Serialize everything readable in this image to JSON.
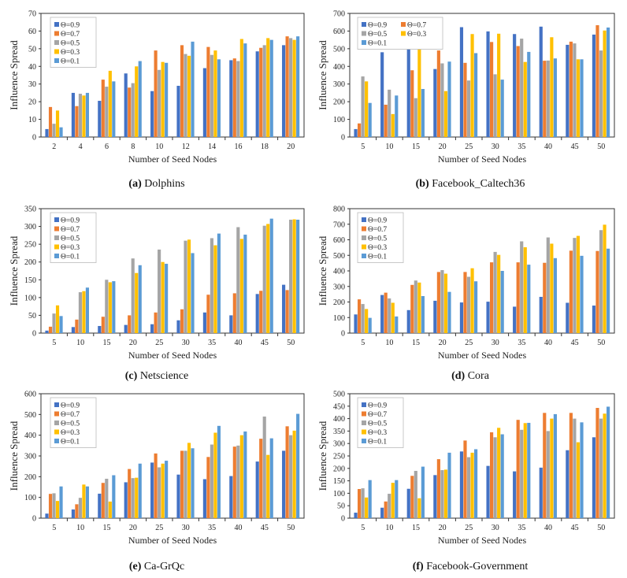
{
  "chart_data": [
    {
      "type": "bar",
      "id": "a",
      "caption_letter": "(a)",
      "caption_name": "Dolphins",
      "xlabel": "Number of Seed Nodes",
      "ylabel": "Influence Spread",
      "ylim": [
        0,
        70
      ],
      "yticks": [
        0,
        10,
        20,
        30,
        40,
        50,
        60,
        70
      ],
      "legend_columns": 1,
      "categories": [
        "2",
        "4",
        "6",
        "8",
        "10",
        "12",
        "14",
        "16",
        "18",
        "20"
      ],
      "series": [
        {
          "name": "Θ=0.9",
          "color": "#4472C4",
          "values": [
            4.5,
            25,
            20.5,
            36,
            26,
            29,
            39,
            43.5,
            48.5,
            52
          ]
        },
        {
          "name": "Θ=0.7",
          "color": "#ED7D31",
          "values": [
            17,
            17.5,
            32.5,
            28,
            49,
            52,
            51,
            44.5,
            50.5,
            57
          ]
        },
        {
          "name": "Θ=0.5",
          "color": "#A5A5A5",
          "values": [
            7.5,
            24.5,
            28.5,
            30.5,
            38,
            47,
            46.5,
            43,
            52,
            56
          ]
        },
        {
          "name": "Θ=0.3",
          "color": "#FFC000",
          "values": [
            15,
            23.5,
            37.5,
            40,
            42.5,
            46,
            49,
            55.5,
            56,
            55
          ]
        },
        {
          "name": "Θ=0.1",
          "color": "#5B9BD5",
          "values": [
            5.5,
            25,
            31.5,
            43,
            42,
            54,
            44,
            53,
            55,
            57
          ]
        }
      ]
    },
    {
      "type": "bar",
      "id": "b",
      "caption_letter": "(b)",
      "caption_name": "Facebook_Caltech36",
      "xlabel": "Number of Seed Nodes",
      "ylabel": "Influence Spread",
      "ylim": [
        0,
        700
      ],
      "yticks": [
        0,
        100,
        200,
        300,
        400,
        500,
        600,
        700
      ],
      "legend_columns": 2,
      "categories": [
        "5",
        "10",
        "15",
        "20",
        "25",
        "30",
        "35",
        "40",
        "45",
        "50"
      ],
      "series": [
        {
          "name": "Θ=0.9",
          "color": "#4472C4",
          "values": [
            45,
            480,
            545,
            385,
            622,
            598,
            583,
            625,
            522,
            580
          ]
        },
        {
          "name": "Θ=0.7",
          "color": "#ED7D31",
          "values": [
            77,
            183,
            378,
            490,
            420,
            538,
            515,
            432,
            540,
            633
          ]
        },
        {
          "name": "Θ=0.5",
          "color": "#A5A5A5",
          "values": [
            343,
            268,
            220,
            417,
            320,
            355,
            557,
            433,
            530,
            490
          ]
        },
        {
          "name": "Θ=0.3",
          "color": "#FFC000",
          "values": [
            315,
            130,
            502,
            260,
            583,
            585,
            425,
            565,
            440,
            603
          ]
        },
        {
          "name": "Θ=0.1",
          "color": "#5B9BD5",
          "values": [
            193,
            235,
            272,
            427,
            475,
            325,
            482,
            445,
            440,
            620
          ]
        }
      ]
    },
    {
      "type": "bar",
      "id": "c",
      "caption_letter": "(c)",
      "caption_name": "Netscience",
      "xlabel": "Number of Seed Nodes",
      "ylabel": "Influence Spread",
      "ylim": [
        0,
        350
      ],
      "yticks": [
        0,
        50,
        100,
        150,
        200,
        250,
        300,
        350
      ],
      "legend_columns": 1,
      "categories": [
        "5",
        "10",
        "15",
        "20",
        "25",
        "30",
        "35",
        "40",
        "45",
        "50"
      ],
      "series": [
        {
          "name": "Θ=0.9",
          "color": "#4472C4",
          "values": [
            7,
            17,
            20,
            23,
            25,
            36,
            58,
            50,
            110,
            136
          ]
        },
        {
          "name": "Θ=0.7",
          "color": "#ED7D31",
          "values": [
            18,
            38,
            46,
            50,
            58,
            67,
            108,
            112,
            119,
            121
          ]
        },
        {
          "name": "Θ=0.5",
          "color": "#A5A5A5",
          "values": [
            55,
            115,
            150,
            210,
            235,
            260,
            267,
            298,
            302,
            319
          ]
        },
        {
          "name": "Θ=0.3",
          "color": "#FFC000",
          "values": [
            78,
            118,
            143,
            169,
            200,
            263,
            247,
            265,
            307,
            320
          ]
        },
        {
          "name": "Θ=0.1",
          "color": "#5B9BD5",
          "values": [
            48,
            128,
            146,
            191,
            195,
            225,
            280,
            277,
            322,
            319
          ]
        }
      ]
    },
    {
      "type": "bar",
      "id": "d",
      "caption_letter": "(d)",
      "caption_name": "Cora",
      "xlabel": "Number of Seed Nodes",
      "ylabel": "Influence Spread",
      "ylim": [
        0,
        800
      ],
      "yticks": [
        0,
        100,
        200,
        300,
        400,
        500,
        600,
        700,
        800
      ],
      "legend_columns": 1,
      "categories": [
        "5",
        "10",
        "15",
        "20",
        "25",
        "30",
        "35",
        "40",
        "45",
        "50"
      ],
      "series": [
        {
          "name": "Θ=0.9",
          "color": "#4472C4",
          "values": [
            120,
            245,
            148,
            208,
            197,
            202,
            170,
            233,
            195,
            177
          ]
        },
        {
          "name": "Θ=0.7",
          "color": "#ED7D31",
          "values": [
            217,
            260,
            310,
            393,
            393,
            455,
            455,
            452,
            530,
            528
          ]
        },
        {
          "name": "Θ=0.5",
          "color": "#A5A5A5",
          "values": [
            187,
            223,
            338,
            405,
            362,
            522,
            590,
            615,
            612,
            662
          ]
        },
        {
          "name": "Θ=0.3",
          "color": "#FFC000",
          "values": [
            155,
            195,
            325,
            382,
            417,
            503,
            552,
            575,
            625,
            697
          ]
        },
        {
          "name": "Θ=0.1",
          "color": "#5B9BD5",
          "values": [
            98,
            107,
            238,
            265,
            333,
            400,
            440,
            482,
            497,
            543
          ]
        }
      ]
    },
    {
      "type": "bar",
      "id": "e",
      "caption_letter": "(e)",
      "caption_name": "Ca-GrQc",
      "xlabel": "Number of Seed Nodes",
      "ylabel": "Influence Spread",
      "ylim": [
        0,
        600
      ],
      "yticks": [
        0,
        100,
        200,
        300,
        400,
        500,
        600
      ],
      "legend_columns": 1,
      "categories": [
        "5",
        "10",
        "15",
        "20",
        "25",
        "30",
        "35",
        "40",
        "45",
        "50"
      ],
      "series": [
        {
          "name": "Θ=0.9",
          "color": "#4472C4",
          "values": [
            22,
            42,
            118,
            173,
            268,
            210,
            188,
            203,
            273,
            325
          ]
        },
        {
          "name": "Θ=0.7",
          "color": "#ED7D31",
          "values": [
            117,
            67,
            170,
            237,
            312,
            325,
            295,
            345,
            383,
            443
          ]
        },
        {
          "name": "Θ=0.5",
          "color": "#A5A5A5",
          "values": [
            120,
            98,
            190,
            193,
            245,
            325,
            355,
            350,
            490,
            400
          ]
        },
        {
          "name": "Θ=0.3",
          "color": "#FFC000",
          "values": [
            83,
            162,
            80,
            195,
            263,
            363,
            412,
            400,
            305,
            422
          ]
        },
        {
          "name": "Θ=0.1",
          "color": "#5B9BD5",
          "values": [
            153,
            153,
            207,
            263,
            277,
            337,
            445,
            418,
            385,
            503
          ]
        }
      ]
    },
    {
      "type": "bar",
      "id": "f",
      "caption_letter": "(f)",
      "caption_name": "Facebook-Government",
      "xlabel": "Number of Seed Nodes",
      "ylabel": "Influence Spread",
      "ylim": [
        0,
        500
      ],
      "yticks": [
        0,
        50,
        100,
        150,
        200,
        250,
        300,
        350,
        400,
        450,
        500
      ],
      "legend_columns": 1,
      "categories": [
        "5",
        "10",
        "15",
        "20",
        "25",
        "30",
        "35",
        "40",
        "45",
        "50"
      ],
      "series": [
        {
          "name": "Θ=0.9",
          "color": "#4472C4",
          "values": [
            22,
            42,
            118,
            173,
            268,
            210,
            188,
            203,
            273,
            325
          ]
        },
        {
          "name": "Θ=0.7",
          "color": "#ED7D31",
          "values": [
            117,
            67,
            170,
            237,
            312,
            345,
            395,
            423,
            423,
            443
          ]
        },
        {
          "name": "Θ=0.5",
          "color": "#A5A5A5",
          "values": [
            120,
            98,
            190,
            193,
            245,
            325,
            355,
            350,
            400,
            400
          ]
        },
        {
          "name": "Θ=0.3",
          "color": "#FFC000",
          "values": [
            83,
            142,
            80,
            195,
            263,
            363,
            382,
            400,
            305,
            420
          ]
        },
        {
          "name": "Θ=0.1",
          "color": "#5B9BD5",
          "values": [
            153,
            153,
            207,
            263,
            277,
            337,
            383,
            418,
            385,
            448
          ]
        }
      ]
    }
  ]
}
